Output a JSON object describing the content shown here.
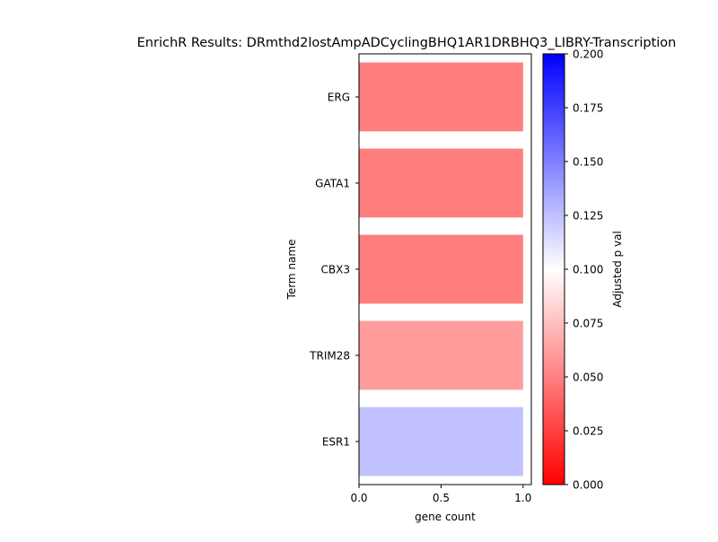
{
  "chart_data": {
    "type": "bar",
    "orientation": "horizontal",
    "title": "EnrichR Results: DRmthd2lostAmpADCyclingBHQ1AR1DRBHQ3_LIBRY-Transcription",
    "xlabel": "gene count",
    "ylabel": "Term name",
    "categories": [
      "ERG",
      "GATA1",
      "CBX3",
      "TRIM28",
      "ESR1"
    ],
    "values": [
      1,
      1,
      1,
      1,
      1
    ],
    "adjusted_p_values": [
      0.028,
      0.028,
      0.028,
      0.045,
      0.135
    ],
    "xlim": [
      0,
      1.05
    ],
    "xticks": [
      "0.0",
      "0.5",
      "1.0"
    ],
    "grid": false,
    "colorbar": {
      "label": "Adjusted p val",
      "min": 0.0,
      "max": 0.2,
      "ticks": [
        "0.000",
        "0.025",
        "0.050",
        "0.075",
        "0.100",
        "0.125",
        "0.150",
        "0.175",
        "0.200"
      ],
      "colormap": "bwr",
      "colors": {
        "low": "#ff0000",
        "mid": "#ffffff",
        "high": "#0000ff"
      }
    }
  }
}
